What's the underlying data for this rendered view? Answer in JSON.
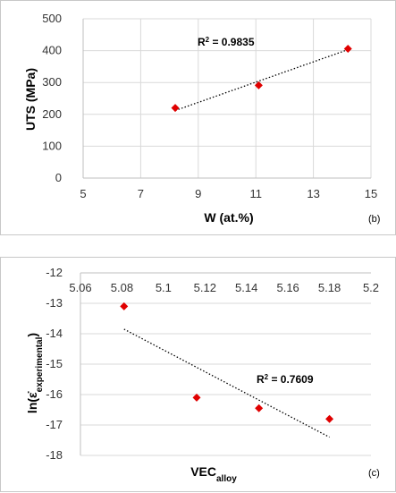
{
  "chart_data": [
    {
      "type": "scatter",
      "panel_label": "(b)",
      "xlabel": "W (at.%)",
      "ylabel": "UTS (MPa)",
      "xlim": [
        5,
        15
      ],
      "ylim": [
        0,
        500
      ],
      "xticks": [
        "5",
        "7",
        "9",
        "11",
        "13",
        "15"
      ],
      "yticks": [
        "0",
        "100",
        "200",
        "300",
        "400",
        "500"
      ],
      "x_grid": true,
      "y_grid": true,
      "points": [
        {
          "x": 8.2,
          "y": 220
        },
        {
          "x": 11.1,
          "y": 291
        },
        {
          "x": 14.2,
          "y": 406
        }
      ],
      "trendline": {
        "type": "linear",
        "from": [
          8.2,
          212
        ],
        "to": [
          14.2,
          403
        ]
      },
      "annotation": {
        "base": "R",
        "sup": "2",
        "text": " = 0.9835"
      },
      "marker_color": "#e00000"
    },
    {
      "type": "scatter",
      "panel_label": "(c)",
      "xlabel_base": "VEC",
      "xlabel_sub": "alloy",
      "ylabel_base": "ln(ε̇",
      "ylabel_sub": "experimental",
      "ylabel_end": ")",
      "xlim": [
        5.06,
        5.2
      ],
      "ylim": [
        -18,
        -12
      ],
      "xticks": [
        "5.06",
        "5.08",
        "5.1",
        "5.12",
        "5.14",
        "5.16",
        "5.18",
        "5.2"
      ],
      "yticks": [
        "-12",
        "-13",
        "-14",
        "-15",
        "-16",
        "-17",
        "-18"
      ],
      "x_axis_position": "top",
      "x_grid": false,
      "y_grid": true,
      "points": [
        {
          "x": 5.081,
          "y": -13.1
        },
        {
          "x": 5.116,
          "y": -16.1
        },
        {
          "x": 5.146,
          "y": -16.45
        },
        {
          "x": 5.18,
          "y": -16.8
        }
      ],
      "trendline": {
        "type": "linear",
        "from": [
          5.081,
          -13.85
        ],
        "to": [
          5.18,
          -17.4
        ]
      },
      "annotation": {
        "base": "R",
        "sup": "2",
        "text": " = 0.7609"
      },
      "marker_color": "#e00000"
    }
  ]
}
